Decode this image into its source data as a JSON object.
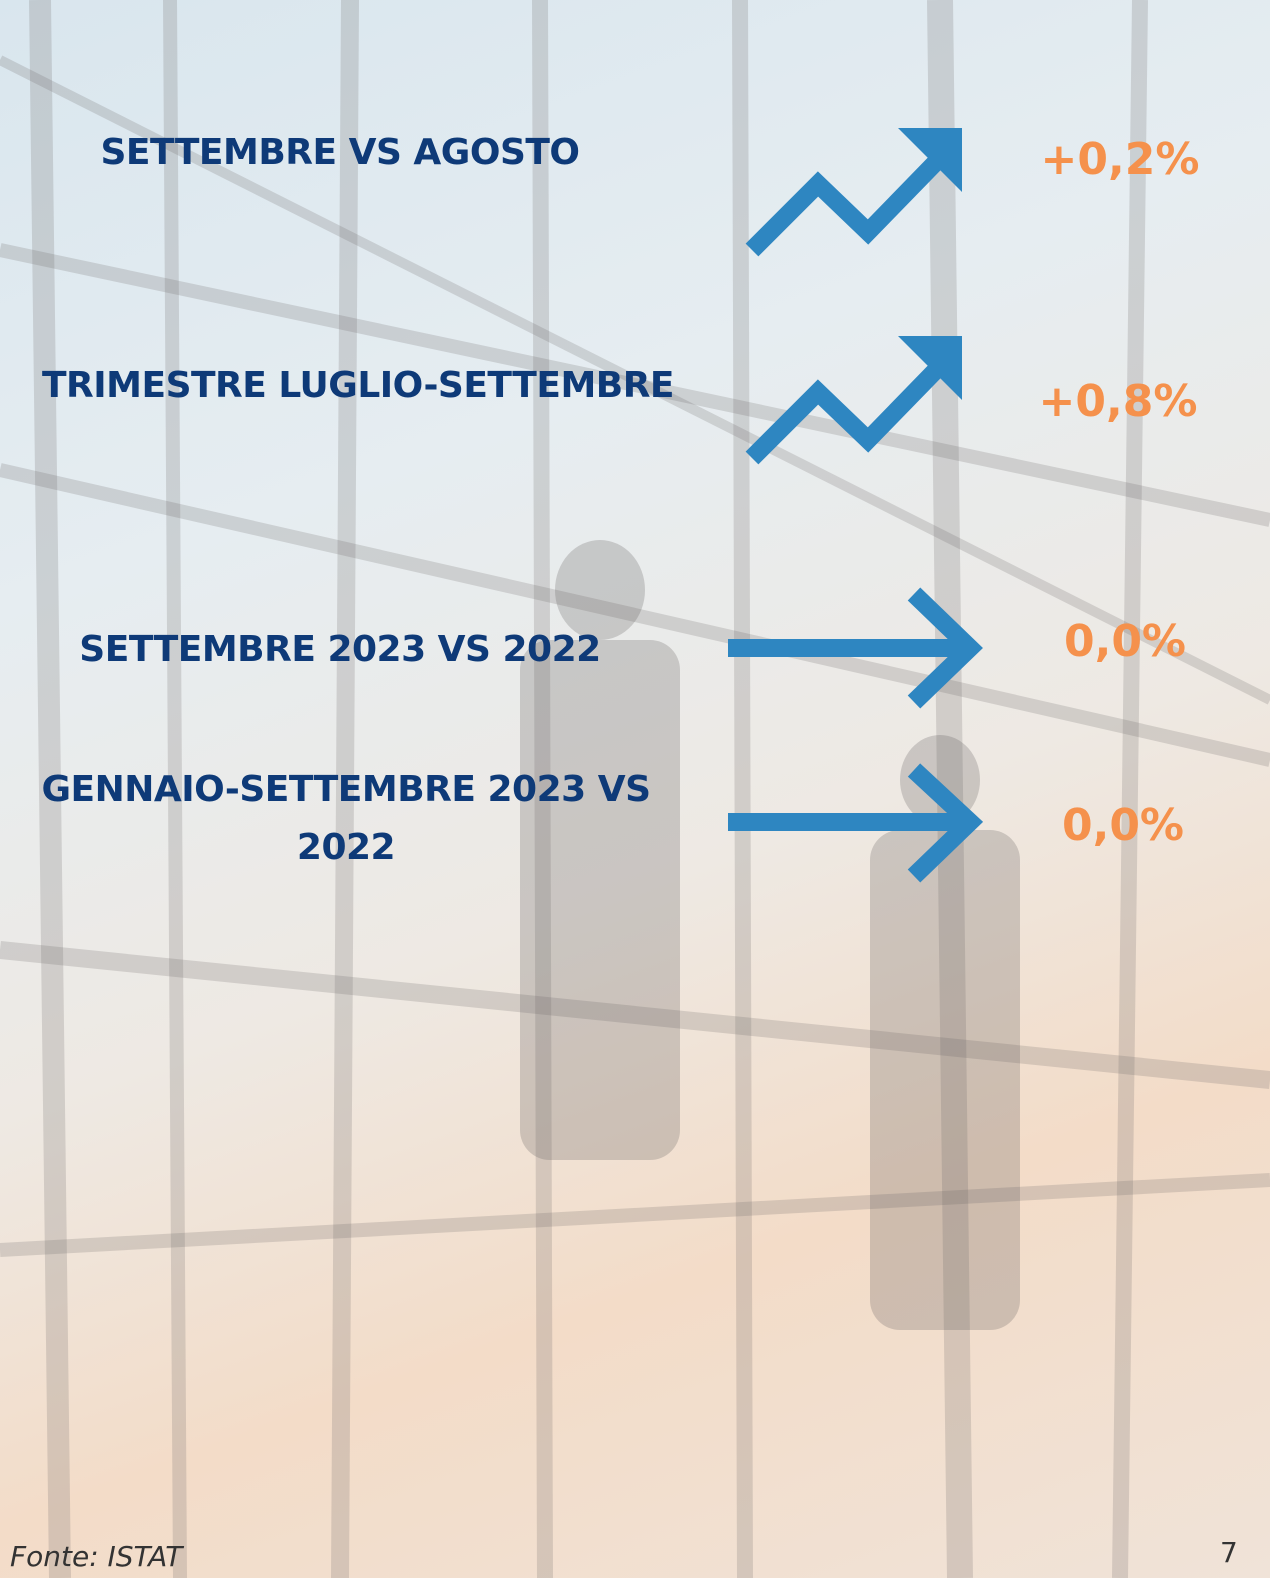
{
  "items": [
    {
      "label": "SETTEMBRE VS AGOSTO",
      "value": "+0,2%"
    },
    {
      "label": "TRIMESTRE LUGLIO-SETTEMBRE",
      "value": "+0,8%"
    },
    {
      "label": "SETTEMBRE 2023 VS 2022",
      "value": "0,0%"
    },
    {
      "label": "GENNAIO-SETTEMBRE 2023 VS 2022",
      "value": "0,0%"
    }
  ],
  "footer": {
    "source": "Fonte: ISTAT",
    "page": "7"
  }
}
